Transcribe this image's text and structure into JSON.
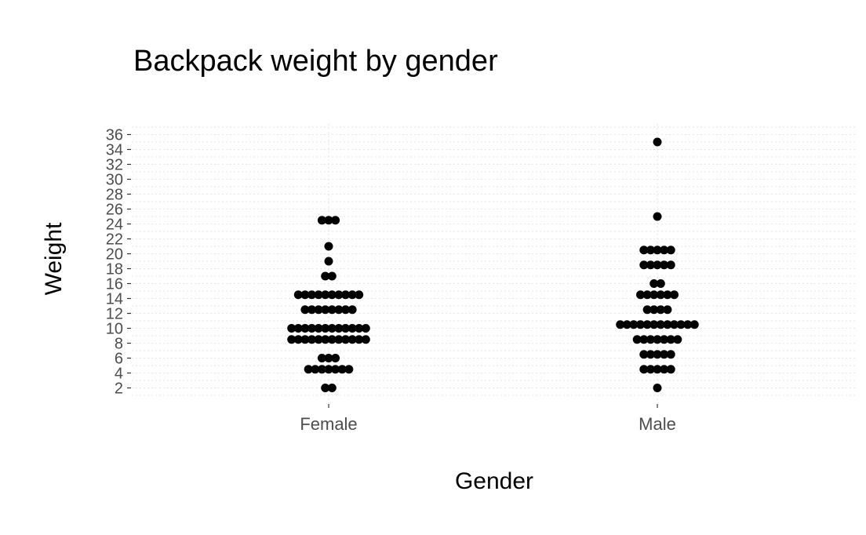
{
  "chart_data": {
    "type": "dotplot",
    "title": "Backpack weight by gender",
    "xlabel": "Gender",
    "ylabel": "Weight",
    "categories": [
      "Female",
      "Male"
    ],
    "ylim": [
      0,
      37
    ],
    "yticks": [
      2,
      4,
      6,
      8,
      10,
      12,
      14,
      16,
      18,
      20,
      22,
      24,
      26,
      28,
      30,
      32,
      34,
      36
    ],
    "grid": true,
    "dot_color": "#000000",
    "stacks": [
      {
        "category": "Female",
        "bins": [
          {
            "y": 2,
            "count": 2
          },
          {
            "y": 4.5,
            "count": 7
          },
          {
            "y": 6,
            "count": 3
          },
          {
            "y": 8.5,
            "count": 12
          },
          {
            "y": 10,
            "count": 12
          },
          {
            "y": 12.5,
            "count": 8
          },
          {
            "y": 14.5,
            "count": 10
          },
          {
            "y": 17,
            "count": 2
          },
          {
            "y": 19,
            "count": 1
          },
          {
            "y": 21,
            "count": 1
          },
          {
            "y": 24.5,
            "count": 3
          }
        ]
      },
      {
        "category": "Male",
        "bins": [
          {
            "y": 2,
            "count": 1
          },
          {
            "y": 4.5,
            "count": 5
          },
          {
            "y": 6.5,
            "count": 5
          },
          {
            "y": 8.5,
            "count": 7
          },
          {
            "y": 10.5,
            "count": 12
          },
          {
            "y": 12.5,
            "count": 4
          },
          {
            "y": 14.5,
            "count": 6
          },
          {
            "y": 16,
            "count": 2
          },
          {
            "y": 18.5,
            "count": 5
          },
          {
            "y": 20.5,
            "count": 5
          },
          {
            "y": 25,
            "count": 1
          },
          {
            "y": 35,
            "count": 1
          }
        ]
      }
    ]
  }
}
